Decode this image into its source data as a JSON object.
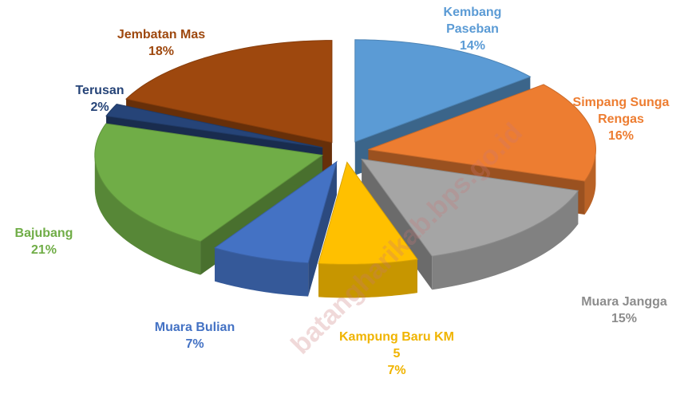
{
  "chart_data": {
    "type": "pie",
    "categories": [
      "Kembang Paseban",
      "Simpang Sunga Rengas",
      "Muara Jangga",
      "Kampung Baru KM 5",
      "Muara Bulian",
      "Bajubang",
      "Terusan",
      "Jembatan Mas"
    ],
    "values": [
      14,
      16,
      15,
      7,
      7,
      21,
      2,
      18
    ],
    "value_labels": [
      "14%",
      "16%",
      "15%",
      "7%",
      "7%",
      "21%",
      "2%",
      "18%"
    ],
    "colors": [
      "#5b9bd5",
      "#ed7d31",
      "#a5a5a5",
      "#ffc000",
      "#4472c4",
      "#70ad47",
      "#264478",
      "#9e480e"
    ],
    "watermark": "batangharikab.bps.go.id"
  }
}
